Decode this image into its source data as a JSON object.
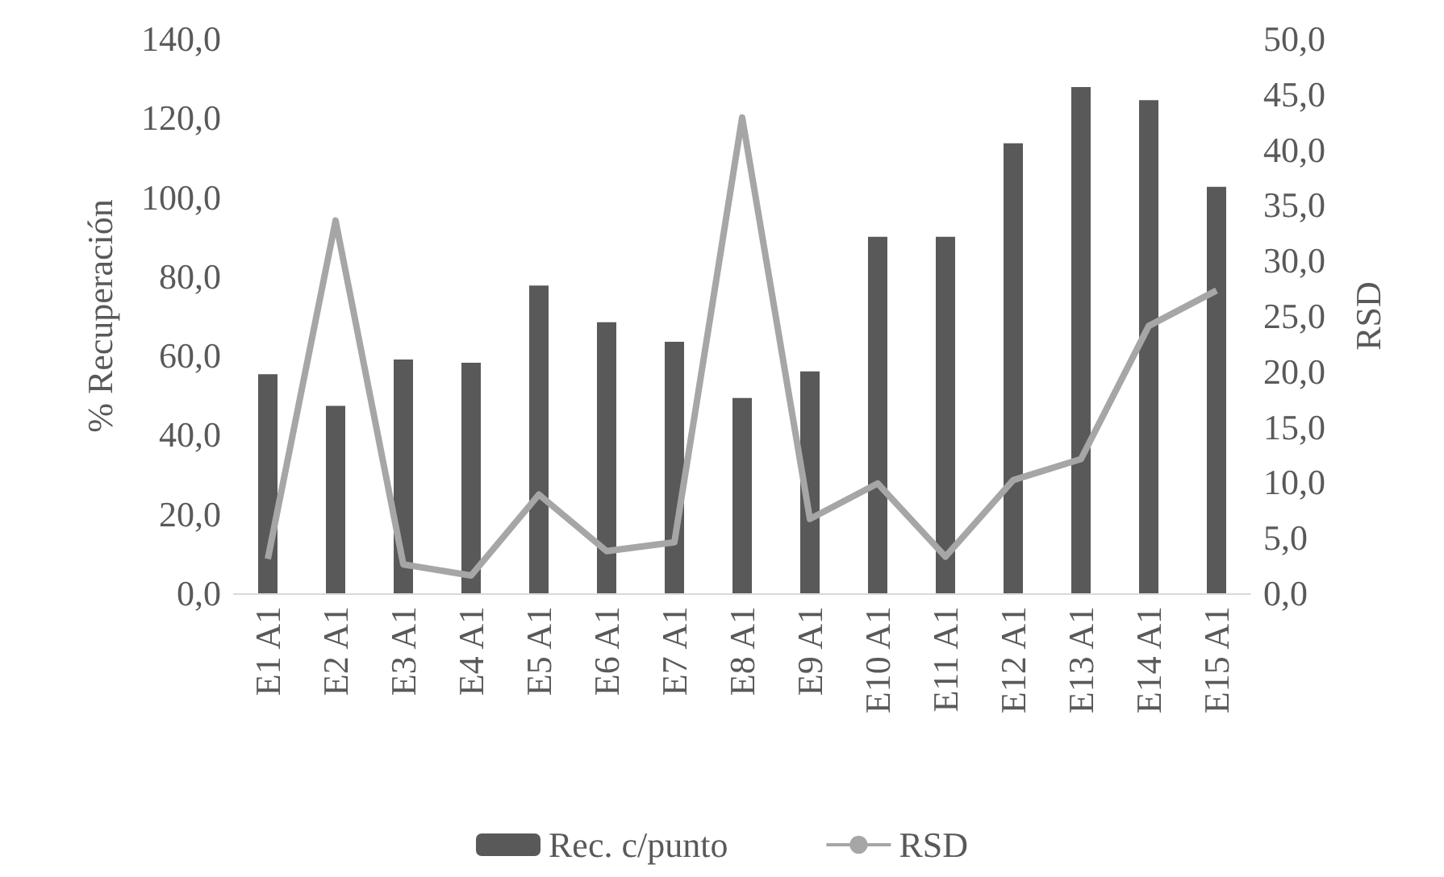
{
  "chart_data": {
    "type": "bar",
    "ylabel": "% Recuperación",
    "y2label": "RSD",
    "categories": [
      "E1 A1",
      "E2 A1",
      "E3 A1",
      "E4 A1",
      "E5 A1",
      "E6 A1",
      "E7 A1",
      "E8 A1",
      "E9 A1",
      "E10 A1",
      "E11 A1",
      "E12 A1",
      "E13 A1",
      "E14 A1",
      "E15 A1"
    ],
    "series": [
      {
        "name": "Rec. c/punto",
        "color": "#595959",
        "values": [
          55.3,
          47.3,
          59.0,
          58.2,
          77.7,
          68.4,
          63.5,
          49.3,
          56.0,
          90.0,
          90.0,
          113.6,
          127.8,
          124.5,
          102.6
        ]
      },
      {
        "name": "RSD",
        "type": "line",
        "axis": "y2",
        "color": "#a6a6a6",
        "values": [
          3.1,
          33.6,
          2.6,
          1.6,
          8.9,
          3.8,
          4.6,
          42.9,
          6.7,
          9.9,
          3.3,
          10.2,
          12.1,
          24.1,
          27.3
        ]
      }
    ],
    "ylim": [
      0,
      140
    ],
    "yticks": [
      {
        "value": 0,
        "label": "0,0"
      },
      {
        "value": 20,
        "label": "20,0"
      },
      {
        "value": 40,
        "label": "40,0"
      },
      {
        "value": 60,
        "label": "60,0"
      },
      {
        "value": 80,
        "label": "80,0"
      },
      {
        "value": 100,
        "label": "100,0"
      },
      {
        "value": 120,
        "label": "120,0"
      },
      {
        "value": 140,
        "label": "140,0"
      }
    ],
    "y2lim": [
      0,
      50
    ],
    "y2ticks": [
      {
        "value": 0,
        "label": "0,0"
      },
      {
        "value": 5,
        "label": "5,0"
      },
      {
        "value": 10,
        "label": "10,0"
      },
      {
        "value": 15,
        "label": "15,0"
      },
      {
        "value": 20,
        "label": "20,0"
      },
      {
        "value": 25,
        "label": "25,0"
      },
      {
        "value": 30,
        "label": "30,0"
      },
      {
        "value": 35,
        "label": "35,0"
      },
      {
        "value": 40,
        "label": "40,0"
      },
      {
        "value": 45,
        "label": "45,0"
      },
      {
        "value": 50,
        "label": "50,0"
      }
    ],
    "grid": false,
    "legend": "bottom",
    "marker": "none",
    "line_style": "solid"
  }
}
